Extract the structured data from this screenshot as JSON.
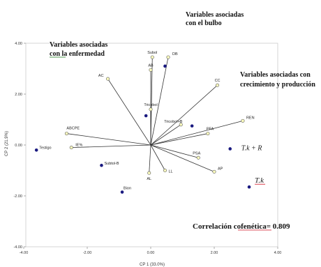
{
  "chart_data": {
    "type": "biplot",
    "xlabel": "CP 1 (33.0%)",
    "ylabel": "CP 2 (21.9%)",
    "xlim": [
      -4.0,
      4.0
    ],
    "ylim": [
      -4.0,
      4.0
    ],
    "x_ticks": [
      "-4.00",
      "-2.00",
      "0.00",
      "2.00",
      "4.00"
    ],
    "y_ticks": [
      "4.00",
      "2.00",
      "0.00",
      "-2.00",
      "-4.00"
    ],
    "x_tick_values": [
      -4,
      -2,
      0,
      2,
      4
    ],
    "y_tick_values": [
      4,
      2,
      0,
      -2,
      -4
    ],
    "grid": false,
    "vectors": [
      {
        "label": "Subol",
        "x": 0.05,
        "y": 3.45
      },
      {
        "label": "AB",
        "x": 0.0,
        "y": 2.95
      },
      {
        "label": "DB",
        "x": 0.55,
        "y": 3.45
      },
      {
        "label": "AC",
        "x": -1.35,
        "y": 2.6
      },
      {
        "label": "Tricobol",
        "x": 0.0,
        "y": 1.4
      },
      {
        "label": "Tricobol+B",
        "x": 0.95,
        "y": 0.8
      },
      {
        "label": "CC",
        "x": 2.1,
        "y": 2.35
      },
      {
        "label": "REN",
        "x": 2.9,
        "y": 0.95
      },
      {
        "label": "PFA",
        "x": 1.8,
        "y": 0.45
      },
      {
        "label": "PSA",
        "x": 1.5,
        "y": -0.5
      },
      {
        "label": "AP",
        "x": 2.0,
        "y": -1.05
      },
      {
        "label": "LL",
        "x": 0.45,
        "y": -1.0
      },
      {
        "label": "AL",
        "x": -0.05,
        "y": -1.1
      },
      {
        "label": "ABCPE",
        "x": -2.65,
        "y": 0.45
      },
      {
        "label": "IE%",
        "x": -2.5,
        "y": -0.1
      }
    ],
    "treatments": [
      {
        "label": "Testigo",
        "x": -3.6,
        "y": -0.2
      },
      {
        "label": "Subtol-B",
        "x": -1.55,
        "y": -0.8
      },
      {
        "label": "Bion",
        "x": -0.9,
        "y": -1.85
      },
      {
        "label": "Tricobol",
        "x": -0.15,
        "y": 1.15
      },
      {
        "label": "",
        "x": 0.45,
        "y": 3.1
      },
      {
        "label": "",
        "x": 1.3,
        "y": 0.75
      },
      {
        "label": "T.k + R",
        "x": 2.5,
        "y": -0.15
      },
      {
        "label": "T.k",
        "x": 3.1,
        "y": -1.65
      }
    ],
    "colors": {
      "vector_end": "#ffffc0",
      "treatment": "#1a1a80",
      "line": "#333333",
      "underline": "#d01020"
    }
  },
  "annotations": {
    "bulbo": [
      "Variables asociadas",
      "con el bulbo"
    ],
    "enfermedad": [
      "Variables asociadas",
      "con la enfermedad"
    ],
    "crecimiento": [
      "Variables asociadas con",
      "crecimiento y producción"
    ],
    "correlacion": "Correlación cofenética= 0.809"
  }
}
